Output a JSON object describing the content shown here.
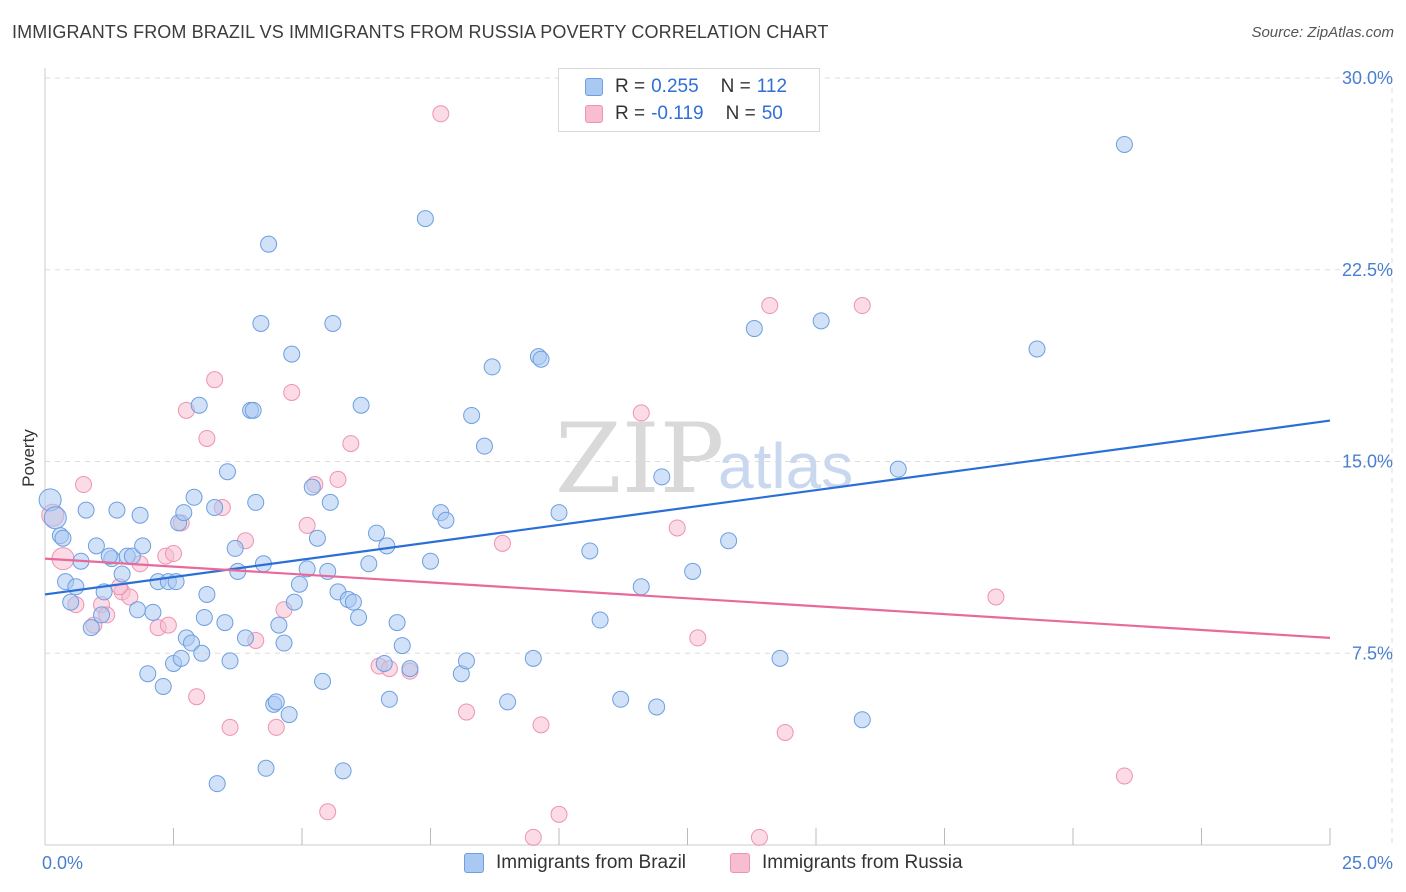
{
  "title": "IMMIGRANTS FROM BRAZIL VS IMMIGRANTS FROM RUSSIA POVERTY CORRELATION CHART",
  "source": "Source: ZipAtlas.com",
  "colors": {
    "brazil_fill": "#a9c8f2",
    "brazil_stroke": "#6e9fe0",
    "brazil_line": "#2a6fd6",
    "russia_fill": "#f7bdd0",
    "russia_stroke": "#ee93b2",
    "russia_line": "#e8699a",
    "tick": "#4a7fd0",
    "grid": "#dddddd"
  },
  "legend": {
    "rows": [
      {
        "r_label": "R =",
        "r_value": "0.255",
        "n_label": "N =",
        "n_value": "112"
      },
      {
        "r_label": "R =",
        "r_value": "-0.119",
        "n_label": "N =",
        "n_value": "50"
      }
    ]
  },
  "bottom_legend": [
    "Immigrants from Brazil",
    "Immigrants from Russia"
  ],
  "watermark": {
    "zip": "ZIP",
    "atlas": "atlas"
  },
  "chart_data": {
    "type": "scatter",
    "title": "IMMIGRANTS FROM BRAZIL VS IMMIGRANTS FROM RUSSIA POVERTY CORRELATION CHART",
    "xlabel": "",
    "ylabel": "Poverty",
    "xlim": [
      0,
      25
    ],
    "ylim": [
      0,
      30
    ],
    "x_tick_labels": [
      "0.0%",
      "25.0%"
    ],
    "y_ticks": [
      7.5,
      15.0,
      22.5,
      30.0
    ],
    "y_tick_labels": [
      "7.5%",
      "15.0%",
      "22.5%",
      "30.0%"
    ],
    "grid": true,
    "series": [
      {
        "name": "Immigrants from Brazil",
        "r": 0.255,
        "n": 112,
        "trend": {
          "x": [
            0,
            25
          ],
          "y": [
            9.8,
            16.6
          ]
        },
        "points": [
          [
            0.1,
            13.5
          ],
          [
            0.2,
            12.8
          ],
          [
            0.3,
            12.1
          ],
          [
            0.4,
            10.3
          ],
          [
            0.5,
            9.5
          ],
          [
            0.6,
            10.1
          ],
          [
            0.7,
            11.1
          ],
          [
            0.8,
            13.1
          ],
          [
            0.9,
            8.5
          ],
          [
            1.0,
            11.7
          ],
          [
            1.1,
            9.0
          ],
          [
            1.15,
            9.9
          ],
          [
            1.3,
            11.2
          ],
          [
            1.4,
            13.1
          ],
          [
            1.5,
            10.6
          ],
          [
            1.6,
            11.3
          ],
          [
            1.7,
            11.3
          ],
          [
            1.8,
            9.2
          ],
          [
            1.85,
            12.9
          ],
          [
            1.9,
            11.7
          ],
          [
            2.0,
            6.7
          ],
          [
            2.1,
            9.1
          ],
          [
            2.2,
            10.3
          ],
          [
            2.3,
            6.2
          ],
          [
            2.4,
            10.3
          ],
          [
            2.5,
            7.1
          ],
          [
            2.6,
            12.6
          ],
          [
            2.65,
            7.3
          ],
          [
            2.7,
            13.0
          ],
          [
            2.75,
            8.1
          ],
          [
            2.85,
            7.9
          ],
          [
            2.9,
            13.6
          ],
          [
            3.0,
            17.2
          ],
          [
            3.05,
            7.5
          ],
          [
            3.1,
            8.9
          ],
          [
            3.15,
            9.8
          ],
          [
            3.3,
            13.2
          ],
          [
            3.35,
            2.4
          ],
          [
            3.5,
            8.7
          ],
          [
            3.55,
            14.6
          ],
          [
            3.6,
            7.2
          ],
          [
            3.7,
            11.6
          ],
          [
            3.75,
            10.7
          ],
          [
            3.9,
            8.1
          ],
          [
            4.0,
            17.0
          ],
          [
            4.05,
            17.0
          ],
          [
            4.1,
            13.4
          ],
          [
            4.2,
            20.4
          ],
          [
            4.3,
            3.0
          ],
          [
            4.35,
            23.5
          ],
          [
            4.45,
            5.5
          ],
          [
            4.5,
            5.6
          ],
          [
            4.55,
            8.6
          ],
          [
            4.65,
            7.9
          ],
          [
            4.75,
            5.1
          ],
          [
            4.8,
            19.2
          ],
          [
            4.85,
            9.5
          ],
          [
            4.95,
            10.2
          ],
          [
            5.1,
            10.8
          ],
          [
            5.2,
            14.0
          ],
          [
            5.3,
            12.0
          ],
          [
            5.4,
            6.4
          ],
          [
            5.5,
            10.7
          ],
          [
            5.55,
            13.4
          ],
          [
            5.6,
            20.4
          ],
          [
            5.7,
            9.9
          ],
          [
            5.8,
            2.9
          ],
          [
            5.9,
            9.6
          ],
          [
            6.1,
            8.9
          ],
          [
            6.15,
            17.2
          ],
          [
            6.3,
            11.0
          ],
          [
            6.45,
            12.2
          ],
          [
            6.6,
            7.1
          ],
          [
            6.65,
            11.7
          ],
          [
            6.7,
            5.7
          ],
          [
            6.85,
            8.7
          ],
          [
            6.95,
            7.8
          ],
          [
            7.1,
            6.9
          ],
          [
            7.4,
            24.5
          ],
          [
            7.5,
            11.1
          ],
          [
            7.7,
            13.0
          ],
          [
            7.8,
            12.7
          ],
          [
            8.1,
            6.7
          ],
          [
            8.2,
            7.2
          ],
          [
            8.3,
            16.8
          ],
          [
            8.55,
            15.6
          ],
          [
            8.7,
            18.7
          ],
          [
            9.0,
            5.6
          ],
          [
            9.5,
            7.3
          ],
          [
            9.6,
            19.1
          ],
          [
            9.65,
            19.0
          ],
          [
            10.0,
            13.0
          ],
          [
            10.6,
            11.5
          ],
          [
            10.8,
            8.8
          ],
          [
            11.2,
            5.7
          ],
          [
            11.6,
            10.1
          ],
          [
            11.9,
            5.4
          ],
          [
            12.0,
            14.4
          ],
          [
            12.6,
            10.7
          ],
          [
            13.3,
            11.9
          ],
          [
            13.8,
            20.2
          ],
          [
            14.3,
            7.3
          ],
          [
            15.1,
            20.5
          ],
          [
            15.9,
            4.9
          ],
          [
            16.6,
            14.7
          ],
          [
            19.3,
            19.4
          ],
          [
            21.0,
            27.4
          ],
          [
            1.25,
            11.3
          ],
          [
            2.55,
            10.3
          ],
          [
            6.0,
            9.5
          ],
          [
            0.35,
            12.0
          ],
          [
            4.25,
            11.0
          ]
        ]
      },
      {
        "name": "Immigrants from Russia",
        "r": -0.119,
        "n": 50,
        "trend": {
          "x": [
            0,
            25
          ],
          "y": [
            11.2,
            8.1
          ]
        },
        "points": [
          [
            0.15,
            12.9
          ],
          [
            0.35,
            11.2
          ],
          [
            0.6,
            9.4
          ],
          [
            0.75,
            14.1
          ],
          [
            0.95,
            8.6
          ],
          [
            1.1,
            9.4
          ],
          [
            1.2,
            9.0
          ],
          [
            1.5,
            9.9
          ],
          [
            1.65,
            9.7
          ],
          [
            1.85,
            11.0
          ],
          [
            2.2,
            8.5
          ],
          [
            2.35,
            11.3
          ],
          [
            2.5,
            11.4
          ],
          [
            2.65,
            12.6
          ],
          [
            2.75,
            17.0
          ],
          [
            2.95,
            5.8
          ],
          [
            3.15,
            15.9
          ],
          [
            3.3,
            18.2
          ],
          [
            3.45,
            13.2
          ],
          [
            3.6,
            4.6
          ],
          [
            3.9,
            11.9
          ],
          [
            4.1,
            8.0
          ],
          [
            4.5,
            4.6
          ],
          [
            4.65,
            9.2
          ],
          [
            4.8,
            17.7
          ],
          [
            5.1,
            12.5
          ],
          [
            5.25,
            14.1
          ],
          [
            5.5,
            1.3
          ],
          [
            5.7,
            14.3
          ],
          [
            5.95,
            15.7
          ],
          [
            6.5,
            7.0
          ],
          [
            6.7,
            6.9
          ],
          [
            7.1,
            6.8
          ],
          [
            7.7,
            28.6
          ],
          [
            8.2,
            5.2
          ],
          [
            8.9,
            11.8
          ],
          [
            9.5,
            0.3
          ],
          [
            9.65,
            4.7
          ],
          [
            10.0,
            1.2
          ],
          [
            11.6,
            16.9
          ],
          [
            12.3,
            12.4
          ],
          [
            12.7,
            8.1
          ],
          [
            13.9,
            0.3
          ],
          [
            14.1,
            21.1
          ],
          [
            14.4,
            4.4
          ],
          [
            15.9,
            21.1
          ],
          [
            18.5,
            9.7
          ],
          [
            21.0,
            2.7
          ],
          [
            1.45,
            10.1
          ],
          [
            2.4,
            8.6
          ]
        ]
      }
    ]
  }
}
